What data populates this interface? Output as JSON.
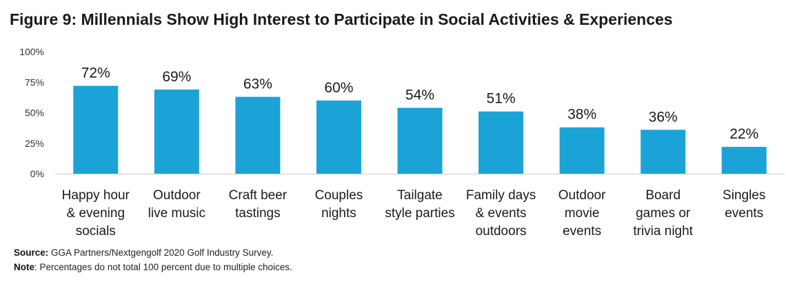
{
  "title": "Figure 9: Millennials Show High Interest to Participate in Social Activities & Experiences",
  "footnotes": {
    "source_label": "Source:",
    "source_text": " GGA Partners/Nextgengolf 2020 Golf Industry Survey.",
    "note_label": "Note",
    "note_text": ": Percentages do not total 100 percent due to multiple choices."
  },
  "colors": {
    "bar": "#1ba3d8",
    "axis": "#d9d9d9",
    "text": "#1a1a1a"
  },
  "chart_data": {
    "type": "bar",
    "title": "Figure 9: Millennials Show High Interest to Participate in Social Activities & Experiences",
    "xlabel": "",
    "ylabel": "",
    "ylim": [
      0,
      100
    ],
    "y_ticks": [
      0,
      25,
      50,
      75,
      100
    ],
    "y_tick_labels": [
      "0%",
      "25%",
      "50%",
      "75%",
      "100%"
    ],
    "grid": false,
    "categories": [
      [
        "Happy hour",
        "& evening",
        "socials"
      ],
      [
        "Outdoor",
        "live music"
      ],
      [
        "Craft beer",
        "tastings"
      ],
      [
        "Couples",
        "nights"
      ],
      [
        "Tailgate",
        "style parties"
      ],
      [
        "Family days",
        "& events",
        "outdoors"
      ],
      [
        "Outdoor",
        "movie",
        "events"
      ],
      [
        "Board",
        "games or",
        "trivia night"
      ],
      [
        "Singles",
        "events"
      ]
    ],
    "values": [
      72,
      69,
      63,
      60,
      54,
      51,
      38,
      36,
      22
    ],
    "data_labels": [
      "72%",
      "69%",
      "63%",
      "60%",
      "54%",
      "51%",
      "38%",
      "36%",
      "22%"
    ]
  }
}
